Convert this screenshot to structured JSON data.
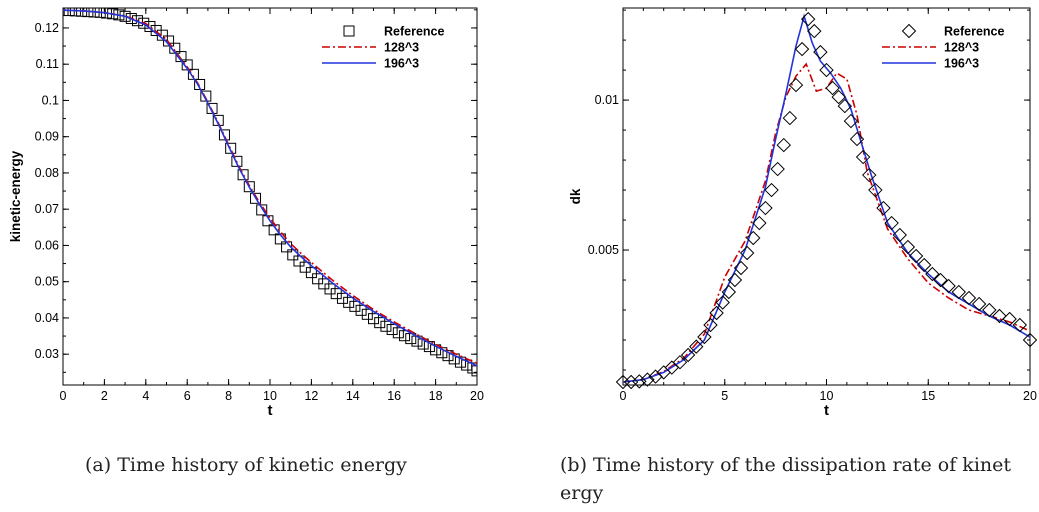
{
  "chart_data": [
    {
      "type": "line",
      "xlabel": "t",
      "ylabel": "kinetic-energy",
      "xlim": [
        0,
        20
      ],
      "ylim": [
        0.0215,
        0.1255
      ],
      "xticks": [
        0,
        2,
        4,
        6,
        8,
        10,
        12,
        14,
        16,
        18,
        20
      ],
      "xtick_labels": [
        "0",
        "2",
        "4",
        "6",
        "8",
        "10",
        "12",
        "14",
        "16",
        "18",
        "20"
      ],
      "yticks": [
        0.03,
        0.04,
        0.05,
        0.06,
        0.07,
        0.08,
        0.09,
        0.1,
        0.11,
        0.12
      ],
      "ytick_labels": [
        "0.03",
        "0.04",
        "0.05",
        "0.06",
        "0.07",
        "0.08",
        "0.09",
        "0.1",
        "0.11",
        "0.12"
      ],
      "legend_position": "top-right",
      "caption": "(a)  Time history of kinetic energy",
      "series": [
        {
          "name": "Reference",
          "marker": "square",
          "color": "#000000",
          "x": [
            0.0,
            0.3,
            0.6,
            0.9,
            1.2,
            1.5,
            1.8,
            2.1,
            2.4,
            2.7,
            3.0,
            3.3,
            3.6,
            3.9,
            4.2,
            4.5,
            4.8,
            5.1,
            5.4,
            5.7,
            6.0,
            6.3,
            6.6,
            6.9,
            7.2,
            7.5,
            7.8,
            8.1,
            8.4,
            8.7,
            9.0,
            9.3,
            9.6,
            9.9,
            10.2,
            10.5,
            10.8,
            11.1,
            11.4,
            11.7,
            12.0,
            12.3,
            12.6,
            12.9,
            13.2,
            13.5,
            13.8,
            14.1,
            14.4,
            14.7,
            15.0,
            15.3,
            15.6,
            15.9,
            16.2,
            16.5,
            16.8,
            17.1,
            17.4,
            17.7,
            18.0,
            18.3,
            18.6,
            18.9,
            19.2,
            19.5,
            19.8,
            20.0
          ],
          "y": [
            0.1248,
            0.1248,
            0.1247,
            0.1246,
            0.1245,
            0.1244,
            0.1243,
            0.1241,
            0.1239,
            0.1236,
            0.1232,
            0.1226,
            0.122,
            0.1213,
            0.1204,
            0.1193,
            0.118,
            0.1164,
            0.1144,
            0.1121,
            0.1098,
            0.1072,
            0.1044,
            0.1012,
            0.0978,
            0.0945,
            0.0905,
            0.0868,
            0.0832,
            0.0795,
            0.0762,
            0.073,
            0.0698,
            0.0668,
            0.0643,
            0.0618,
            0.0596,
            0.0574,
            0.0557,
            0.054,
            0.0525,
            0.0508,
            0.0494,
            0.048,
            0.0467,
            0.0454,
            0.0443,
            0.0432,
            0.0421,
            0.041,
            0.0398,
            0.0387,
            0.0377,
            0.0368,
            0.0359,
            0.0351,
            0.0343,
            0.0336,
            0.0328,
            0.0321,
            0.0312,
            0.0304,
            0.0296,
            0.0287,
            0.0278,
            0.027,
            0.0262,
            0.0254
          ]
        },
        {
          "name": "128^3",
          "style": "dash-dot",
          "color": "#cc0000",
          "x": [
            0,
            1,
            2,
            3,
            4,
            5,
            6,
            6.5,
            7,
            7.5,
            8,
            8.5,
            9,
            9.5,
            10,
            10.5,
            11,
            11.5,
            12,
            13,
            14,
            15,
            16,
            17,
            18,
            19,
            20
          ],
          "y": [
            0.1249,
            0.1247,
            0.1242,
            0.1233,
            0.1212,
            0.1168,
            0.1092,
            0.1048,
            0.0995,
            0.0938,
            0.0878,
            0.0818,
            0.0765,
            0.0718,
            0.0675,
            0.0638,
            0.0605,
            0.0578,
            0.0553,
            0.0505,
            0.0462,
            0.0423,
            0.0389,
            0.0357,
            0.0327,
            0.03,
            0.0275
          ]
        },
        {
          "name": "196^3",
          "style": "solid",
          "color": "#2233dd",
          "x": [
            0,
            1,
            2,
            3,
            4,
            5,
            6,
            6.5,
            7,
            7.5,
            8,
            8.5,
            9,
            9.5,
            10,
            10.5,
            11,
            11.5,
            12,
            13,
            14,
            15,
            16,
            17,
            18,
            19,
            20
          ],
          "y": [
            0.1249,
            0.1247,
            0.1242,
            0.1232,
            0.1208,
            0.1162,
            0.1088,
            0.1045,
            0.0992,
            0.0935,
            0.0874,
            0.0814,
            0.0761,
            0.0713,
            0.0668,
            0.0629,
            0.0596,
            0.0569,
            0.0544,
            0.0497,
            0.0455,
            0.0418,
            0.0384,
            0.0352,
            0.0322,
            0.0294,
            0.0268
          ]
        }
      ]
    },
    {
      "type": "line",
      "xlabel": "t",
      "ylabel": "dk",
      "xlim": [
        0,
        20
      ],
      "ylim": [
        0.0005,
        0.01307
      ],
      "xticks": [
        0,
        5,
        10,
        15,
        20
      ],
      "xtick_labels": [
        "0",
        "5",
        "10",
        "15",
        "20"
      ],
      "yticks": [
        0.005,
        0.01
      ],
      "ytick_labels": [
        "0.005",
        "0.01"
      ],
      "legend_position": "top-right",
      "caption_line1": "(b)  Time history of the dissipation rate of kinet",
      "caption_line2": "ergy",
      "series": [
        {
          "name": "Reference",
          "marker": "diamond",
          "color": "#000000",
          "x": [
            0.0,
            0.4,
            0.8,
            1.2,
            1.6,
            2.0,
            2.4,
            2.8,
            3.2,
            3.6,
            4.0,
            4.3,
            4.6,
            4.9,
            5.2,
            5.5,
            5.8,
            6.1,
            6.4,
            6.7,
            7.0,
            7.3,
            7.6,
            7.9,
            8.2,
            8.5,
            8.8,
            9.1,
            9.4,
            9.7,
            10.0,
            10.3,
            10.6,
            10.9,
            11.2,
            11.5,
            11.8,
            12.1,
            12.4,
            12.8,
            13.2,
            13.6,
            14.0,
            14.4,
            14.8,
            15.2,
            15.6,
            16.0,
            16.5,
            17.0,
            17.5,
            18.0,
            18.5,
            19.0,
            19.5,
            20.0
          ],
          "y": [
            0.0006,
            0.0006,
            0.00062,
            0.00068,
            0.00078,
            0.00092,
            0.00108,
            0.00126,
            0.0015,
            0.00178,
            0.0021,
            0.0025,
            0.0029,
            0.00325,
            0.0036,
            0.004,
            0.0044,
            0.0049,
            0.0054,
            0.0059,
            0.0064,
            0.007,
            0.0077,
            0.0085,
            0.0094,
            0.0105,
            0.0117,
            0.0127,
            0.0123,
            0.0116,
            0.011,
            0.0104,
            0.0101,
            0.0098,
            0.0093,
            0.0087,
            0.0081,
            0.0075,
            0.007,
            0.0064,
            0.0059,
            0.0055,
            0.0051,
            0.0048,
            0.0045,
            0.0042,
            0.004,
            0.0038,
            0.0036,
            0.0034,
            0.0032,
            0.003,
            0.0028,
            0.0027,
            0.0025,
            0.002
          ]
        },
        {
          "name": "128^3",
          "style": "dash-dot",
          "color": "#cc0000",
          "x": [
            0,
            1,
            2,
            3,
            4,
            5,
            6,
            7,
            7.5,
            8,
            8.5,
            9,
            9.5,
            10,
            10.5,
            11,
            11.5,
            12,
            13,
            14,
            15,
            16,
            17,
            18,
            19,
            20
          ],
          "y": [
            0.0006,
            0.00068,
            0.00095,
            0.0014,
            0.0022,
            0.0041,
            0.0053,
            0.0073,
            0.0089,
            0.0101,
            0.0108,
            0.0112,
            0.0103,
            0.0104,
            0.0109,
            0.0107,
            0.0095,
            0.0076,
            0.0057,
            0.0047,
            0.0039,
            0.0034,
            0.003,
            0.0028,
            0.0026,
            0.0023
          ]
        },
        {
          "name": "196^3",
          "style": "solid",
          "color": "#2233dd",
          "x": [
            0,
            1,
            2,
            3,
            4,
            5,
            6,
            7,
            7.5,
            8,
            8.5,
            8.9,
            9.3,
            9.7,
            10.2,
            10.7,
            11.2,
            11.7,
            12.2,
            13,
            14,
            15,
            16,
            17,
            18,
            19,
            20
          ],
          "y": [
            0.0006,
            0.00068,
            0.00092,
            0.00135,
            0.002,
            0.0036,
            0.005,
            0.0071,
            0.0087,
            0.0102,
            0.0118,
            0.0128,
            0.0119,
            0.0113,
            0.0109,
            0.0104,
            0.0097,
            0.0086,
            0.0075,
            0.0059,
            0.0049,
            0.0042,
            0.0036,
            0.0032,
            0.0028,
            0.0025,
            0.0021
          ]
        }
      ]
    }
  ]
}
